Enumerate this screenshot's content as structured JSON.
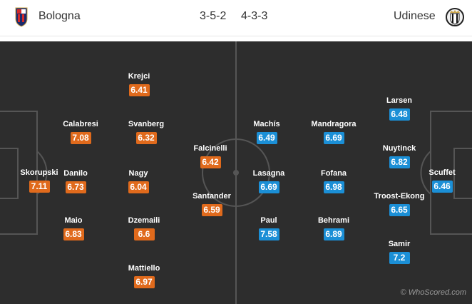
{
  "header": {
    "home_team": "Bologna",
    "away_team": "Udinese",
    "home_formation": "3-5-2",
    "away_formation": "4-3-3",
    "home_crest": "bologna-crest-icon",
    "away_crest": "udinese-crest-icon"
  },
  "colors": {
    "home_rating": "#e06a1c",
    "away_rating": "#1b8fd6",
    "pitch": "#2d2d2d"
  },
  "home_players": [
    {
      "name": "Skorupski",
      "rating": "7.11"
    },
    {
      "name": "Calabresi",
      "rating": "7.08"
    },
    {
      "name": "Danilo",
      "rating": "6.73"
    },
    {
      "name": "Maio",
      "rating": "6.83"
    },
    {
      "name": "Krejci",
      "rating": "6.41"
    },
    {
      "name": "Svanberg",
      "rating": "6.32"
    },
    {
      "name": "Nagy",
      "rating": "6.04"
    },
    {
      "name": "Dzemaili",
      "rating": "6.6"
    },
    {
      "name": "Mattiello",
      "rating": "6.97"
    },
    {
      "name": "Falcinelli",
      "rating": "6.42"
    },
    {
      "name": "Santander",
      "rating": "6.59"
    }
  ],
  "away_players": [
    {
      "name": "Machís",
      "rating": "6.49"
    },
    {
      "name": "Lasagna",
      "rating": "6.69"
    },
    {
      "name": "Paul",
      "rating": "7.58"
    },
    {
      "name": "Mandragora",
      "rating": "6.69"
    },
    {
      "name": "Fofana",
      "rating": "6.98"
    },
    {
      "name": "Behrami",
      "rating": "6.89"
    },
    {
      "name": "Larsen",
      "rating": "6.48"
    },
    {
      "name": "Nuytinck",
      "rating": "6.82"
    },
    {
      "name": "Troost-Ekong",
      "rating": "6.65"
    },
    {
      "name": "Samir",
      "rating": "7.2"
    },
    {
      "name": "Scuffet",
      "rating": "6.46"
    }
  ],
  "watermark": "© WhoScored.com"
}
